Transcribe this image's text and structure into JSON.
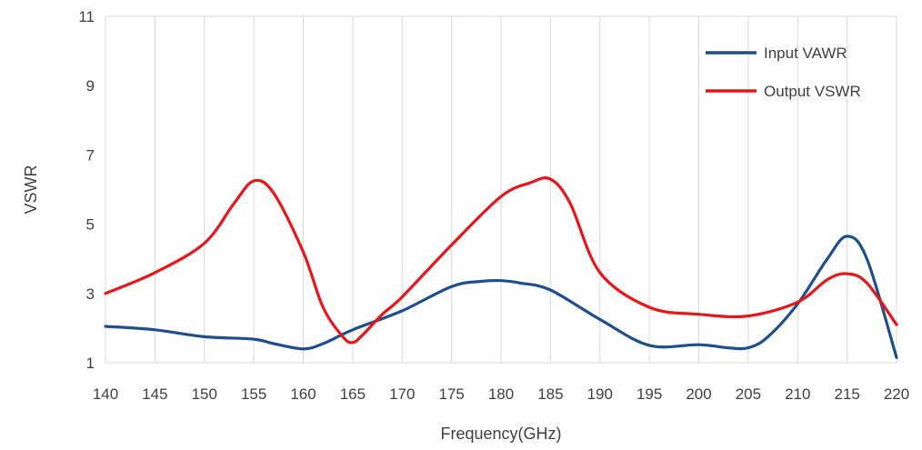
{
  "chart_data": {
    "type": "line",
    "xlabel": "Frequency(GHz)",
    "ylabel": "VSWR",
    "xlim": [
      140,
      220
    ],
    "ylim": [
      1,
      11
    ],
    "xticks": [
      140,
      145,
      150,
      155,
      160,
      165,
      170,
      175,
      180,
      185,
      190,
      195,
      200,
      205,
      210,
      215,
      220
    ],
    "yticks": [
      1,
      3,
      5,
      7,
      9,
      11
    ],
    "grid": "vertical",
    "legend_position": "top-right",
    "series": [
      {
        "name": "Input VAWR",
        "color": "#1f4e8c",
        "x": [
          140,
          145,
          150,
          155,
          157,
          160,
          162,
          165,
          170,
          175,
          178,
          180,
          182,
          185,
          190,
          195,
          200,
          203,
          205,
          207,
          210,
          213,
          215,
          217,
          220
        ],
        "y": [
          2.05,
          1.95,
          1.75,
          1.68,
          1.55,
          1.4,
          1.55,
          1.95,
          2.5,
          3.2,
          3.35,
          3.37,
          3.3,
          3.1,
          2.25,
          1.5,
          1.52,
          1.43,
          1.43,
          1.75,
          2.7,
          4.0,
          4.65,
          4.0,
          1.15
        ]
      },
      {
        "name": "Output VSWR",
        "color": "#e8151b",
        "x": [
          140,
          145,
          150,
          153,
          155,
          157,
          160,
          162,
          164,
          165,
          166,
          168,
          170,
          175,
          180,
          183,
          185,
          187,
          190,
          195,
          200,
          205,
          210,
          213,
          215,
          217,
          220
        ],
        "y": [
          3.0,
          3.6,
          4.45,
          5.6,
          6.25,
          5.9,
          4.2,
          2.6,
          1.75,
          1.58,
          1.8,
          2.4,
          2.9,
          4.4,
          5.8,
          6.2,
          6.3,
          5.6,
          3.6,
          2.6,
          2.4,
          2.35,
          2.75,
          3.4,
          3.57,
          3.3,
          2.1
        ]
      }
    ]
  }
}
